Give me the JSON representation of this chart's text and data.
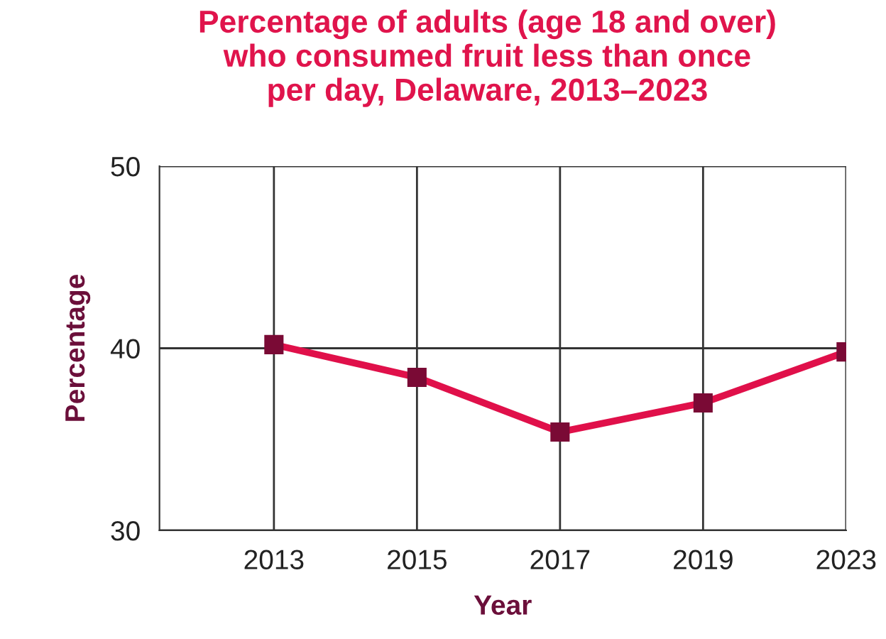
{
  "chart_data": {
    "type": "line",
    "title": "Percentage of adults (age 18 and over)\nwho consumed fruit less than once\nper day, Delaware, 2013–2023",
    "xlabel": "Year",
    "ylabel": "Percentage",
    "categories": [
      "2013",
      "2015",
      "2017",
      "2019",
      "2023"
    ],
    "series": [
      {
        "color": "#e0104a",
        "values": [
          40.2,
          38.4,
          35.4,
          37.0,
          39.8
        ]
      }
    ],
    "ylim": [
      30,
      50
    ],
    "yticks": [
      30,
      40,
      50
    ],
    "grid": true,
    "marker": "square",
    "line_style": "solid",
    "legend": false
  }
}
